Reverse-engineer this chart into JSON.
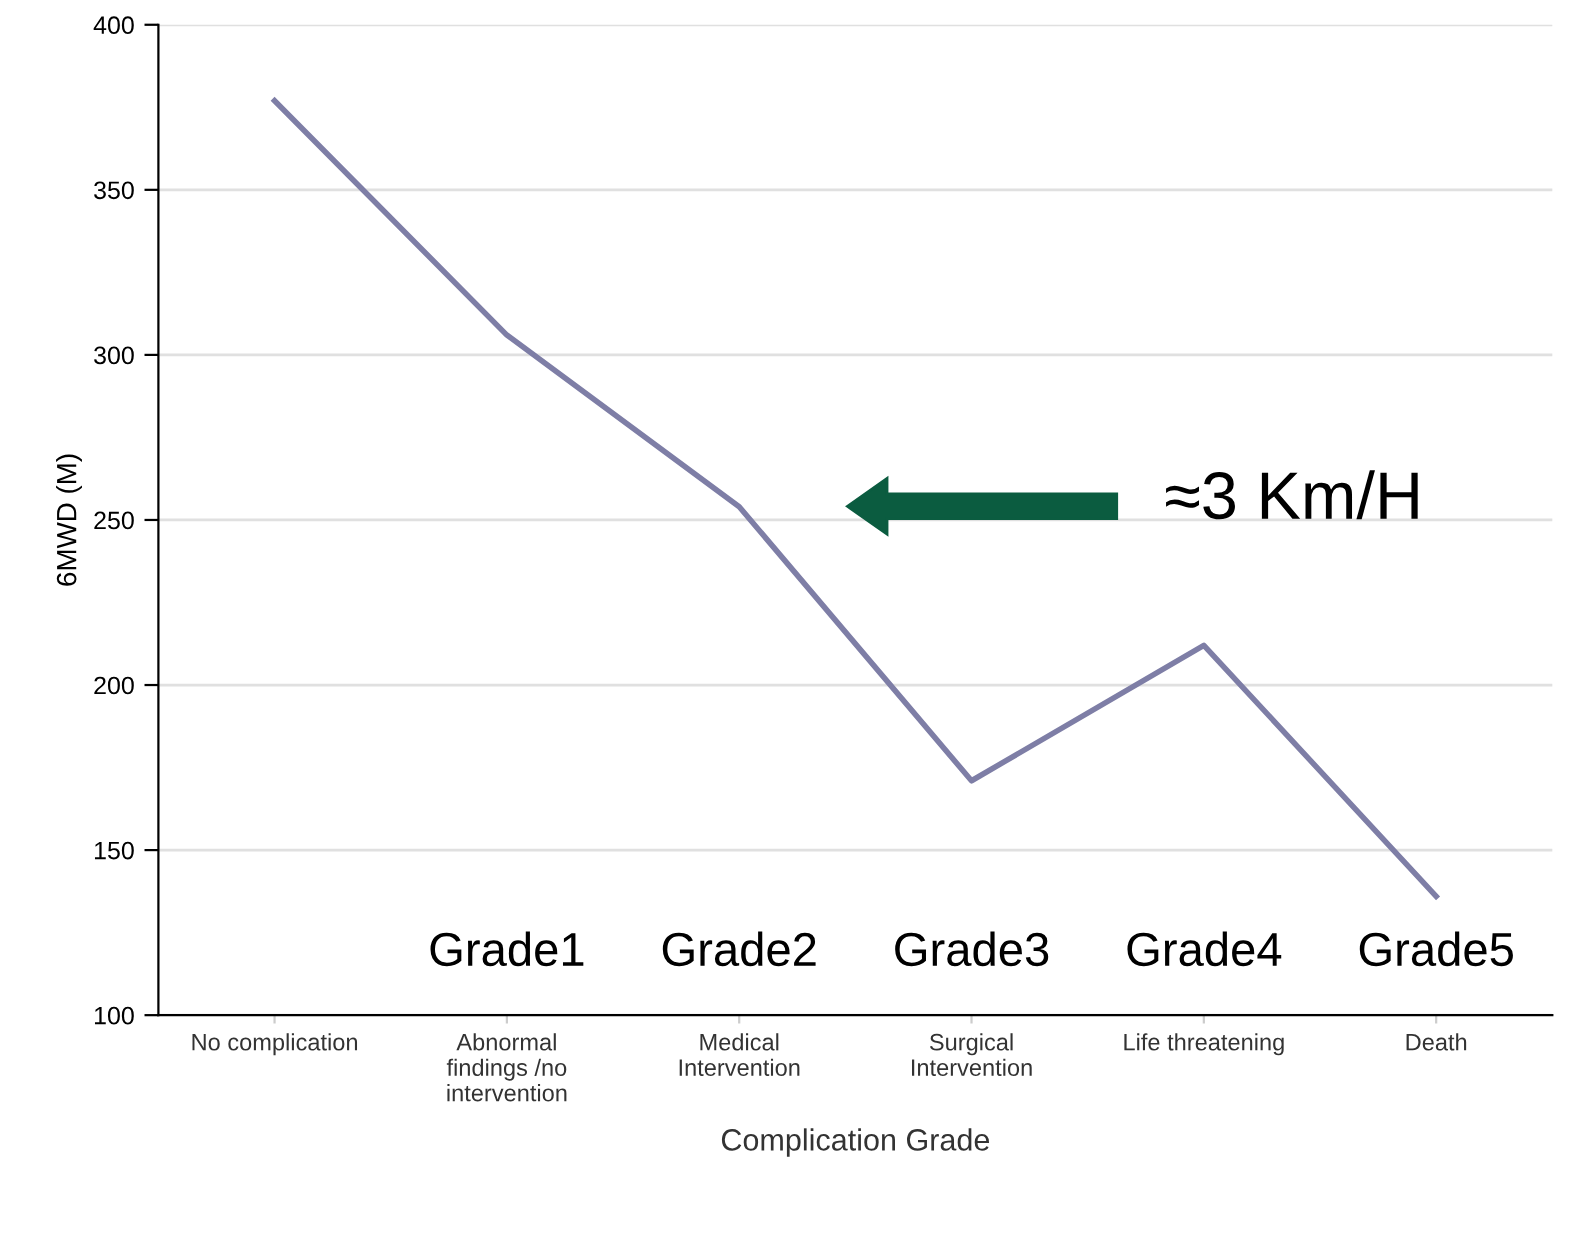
{
  "chart_data": {
    "type": "line",
    "xlabel": "Complication Grade",
    "ylabel": "6MWD (M)",
    "categories": [
      "No complication",
      "Abnormal\nfindings /no\nintervention",
      "Medical\nIntervention",
      "Surgical\nIntervention",
      "Life threatening",
      "Death"
    ],
    "series": [
      {
        "color": "#7e7ea6",
        "values": [
          377,
          306,
          254,
          171,
          212,
          136
        ]
      }
    ],
    "ylim": [
      100,
      400
    ],
    "yticks": [
      100,
      150,
      200,
      250,
      300,
      350,
      400
    ],
    "grid": "y",
    "marker": "none",
    "line_style": "solid",
    "annotations": [
      "≈3 Km/H",
      "Grade1",
      "Grade2",
      "Grade3",
      "Grade4",
      "Grade5"
    ]
  }
}
